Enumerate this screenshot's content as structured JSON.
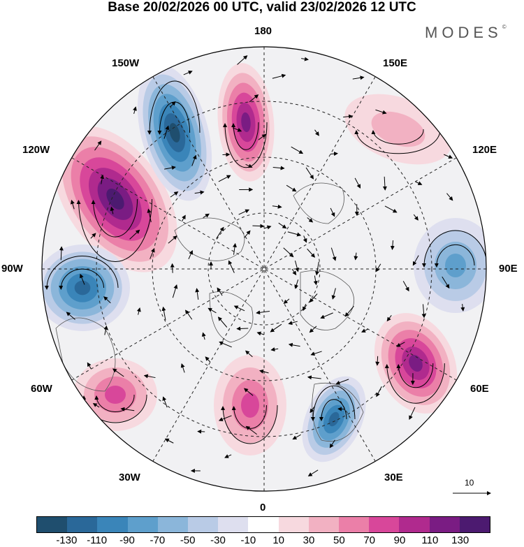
{
  "title": "Base 20/02/2026 00 UTC, valid 23/02/2026 12 UTC",
  "brand": "MODES",
  "brand_mark": "©",
  "longitude_labels": {
    "top": "180",
    "bottom": "0",
    "left": "90W",
    "right": "90E",
    "upper_left": "150W",
    "upper_right": "150E",
    "mid_upper_left": "120W",
    "mid_upper_right": "120E",
    "mid_lower_left": "60W",
    "mid_lower_right": "60E",
    "lower_left": "30W",
    "lower_right": "30E"
  },
  "reference_vector": {
    "label": "10"
  },
  "colorbar": {
    "ticks": [
      "-130",
      "-110",
      "-90",
      "-70",
      "-50",
      "-30",
      "-10",
      "10",
      "30",
      "50",
      "70",
      "90",
      "110",
      "130"
    ],
    "colors": [
      "#1f4e6e",
      "#2a6899",
      "#3a85b9",
      "#5e9fcc",
      "#8bb6da",
      "#b9cbe6",
      "#dedfef",
      "#ffffff",
      "#f7d9df",
      "#f2b1c2",
      "#eb7fa8",
      "#d8479a",
      "#b02a8e",
      "#7a1c83",
      "#4c1a70"
    ]
  },
  "anomalies": [
    {
      "name": "anomaly-120w-positive",
      "value": 130
    },
    {
      "name": "anomaly-150w-negative",
      "value": -130
    },
    {
      "name": "anomaly-170w-positive",
      "value": 110
    },
    {
      "name": "anomaly-90w-negative",
      "value": -110
    },
    {
      "name": "anomaly-60w-positive",
      "value": 70
    },
    {
      "name": "anomaly-60e-positive",
      "value": 110
    },
    {
      "name": "anomaly-30e-negative",
      "value": -110
    },
    {
      "name": "anomaly-10e-positive",
      "value": 70
    },
    {
      "name": "anomaly-90e-negative",
      "value": -70
    },
    {
      "name": "anomaly-150e-positive",
      "value": 30
    }
  ]
}
